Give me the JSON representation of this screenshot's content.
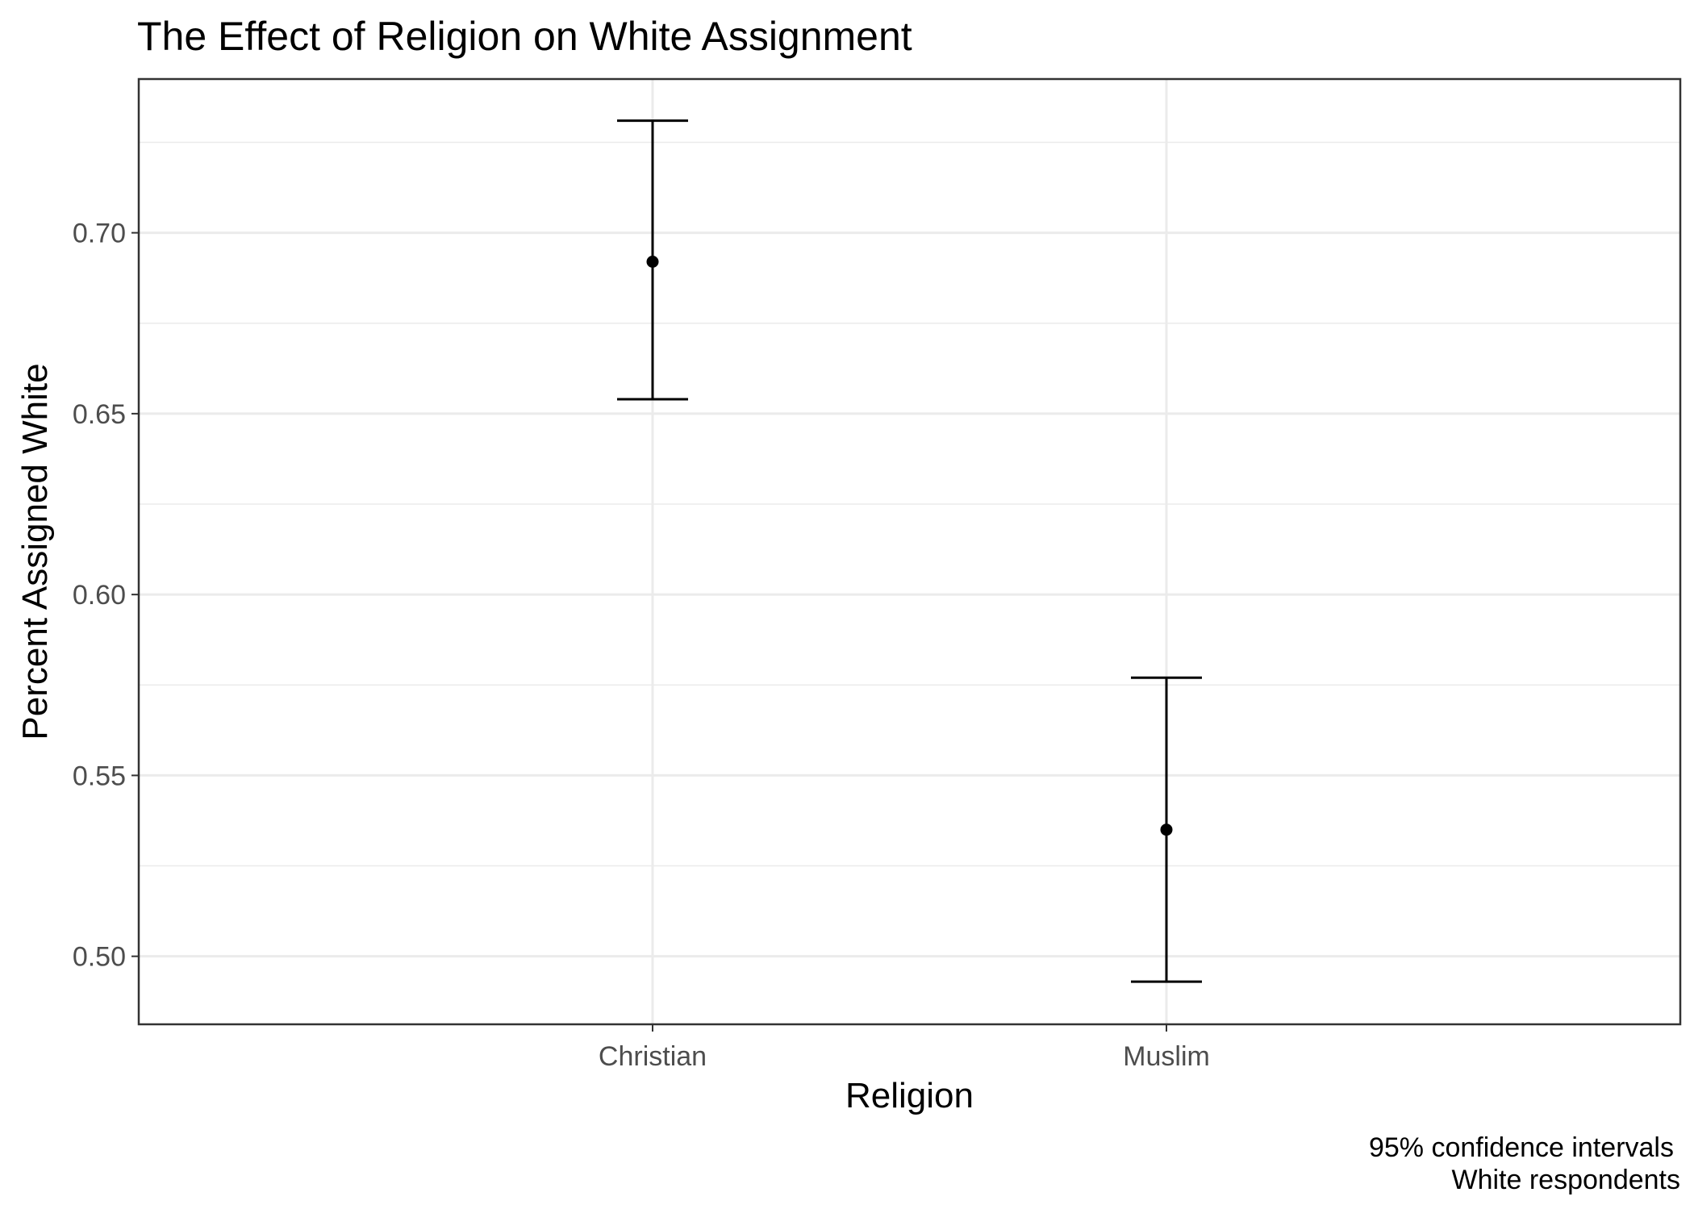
{
  "chart_data": {
    "type": "errorbar",
    "title": "The Effect of Religion on White Assignment",
    "xlabel": "Religion",
    "ylabel": "Percent Assigned White",
    "categories": [
      "Christian",
      "Muslim"
    ],
    "series": [
      {
        "values": [
          0.692,
          0.535
        ],
        "lower": [
          0.654,
          0.493
        ],
        "upper": [
          0.731,
          0.577
        ]
      }
    ],
    "y_ticks": [
      "0.50",
      "0.55",
      "0.60",
      "0.65",
      "0.70"
    ],
    "y_tick_values": [
      0.5,
      0.55,
      0.6,
      0.65,
      0.7
    ],
    "ylim": [
      0.4812,
      0.7425
    ],
    "grid": true,
    "caption": [
      "95% confidence intervals",
      "White respondents"
    ]
  }
}
